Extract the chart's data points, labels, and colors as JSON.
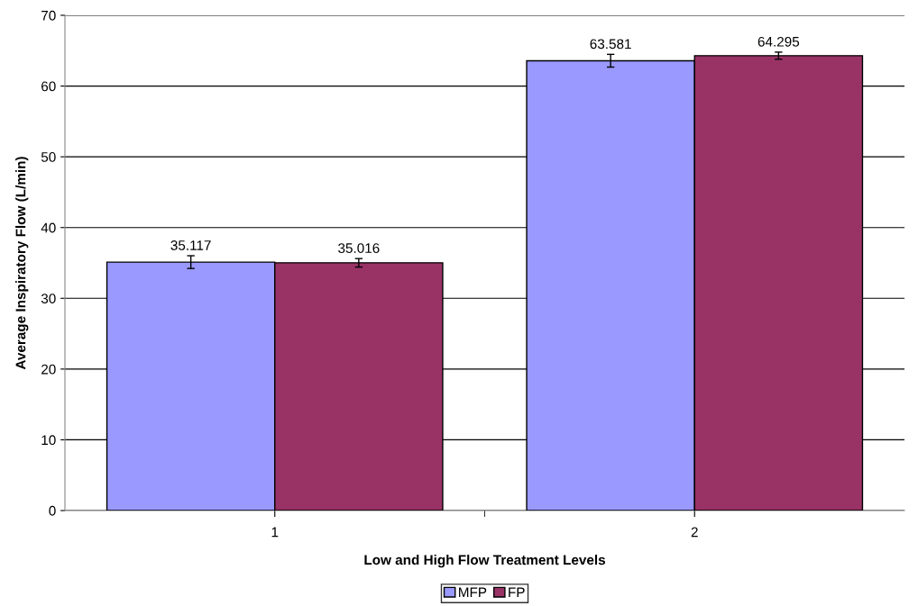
{
  "chart_data": {
    "type": "bar",
    "xlabel": "Low and High Flow Treatment Levels",
    "ylabel": "Average Inspiratory Flow (L/min)",
    "categories": [
      "1",
      "2"
    ],
    "series": [
      {
        "name": "MFP",
        "color": "#9999ff",
        "values": [
          35.117,
          63.581
        ],
        "errors": [
          0.9,
          0.9
        ]
      },
      {
        "name": "FP",
        "color": "#993366",
        "values": [
          35.016,
          64.295
        ],
        "errors": [
          0.6,
          0.5
        ]
      }
    ],
    "ylim": [
      0,
      70
    ],
    "yticks": [
      0,
      10,
      20,
      30,
      40,
      50,
      60,
      70
    ],
    "grid": "y",
    "legend": "bottom",
    "data_labels": true
  }
}
